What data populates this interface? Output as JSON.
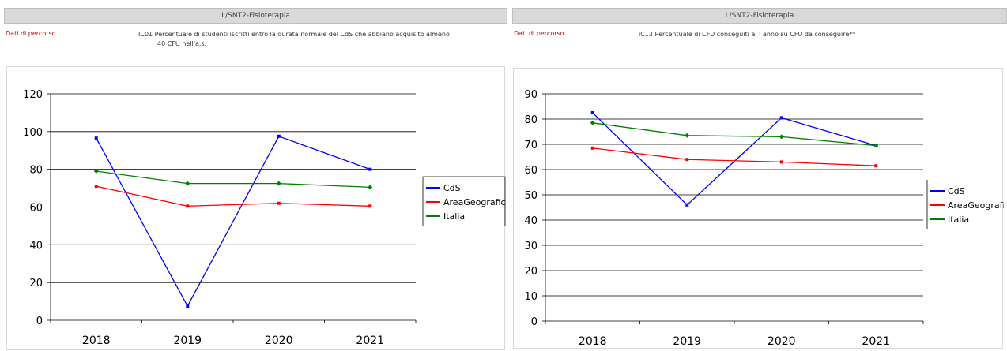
{
  "left": {
    "header": "L/SNT2-Fisioterapia",
    "path_label": "Dati di percorso",
    "indicator_line1": "IC01 Percentuale di studenti iscritti entro la durata normale del CdS che abbiano acquisito almeno",
    "indicator_line2": "40 CFU nell'a.s."
  },
  "right": {
    "header": "L/SNT2-Fisioterapia",
    "path_label": "Dati di percorso",
    "indicator_line1": "iC13 Percentuale di CFU conseguiti al I anno su CFU da conseguire**"
  },
  "colors": {
    "CdS": "#0000ff",
    "AreaGeografica": "#ff0000",
    "Italia": "#008000"
  },
  "chart_data": [
    {
      "type": "line",
      "categories": [
        "2018",
        "2019",
        "2020",
        "2021"
      ],
      "ylim": [
        0,
        120
      ],
      "yticks": [
        0,
        20,
        40,
        60,
        80,
        100,
        120
      ],
      "series": [
        {
          "name": "CdS",
          "values": [
            96.5,
            7.5,
            97.5,
            80.0
          ]
        },
        {
          "name": "AreaGeografica",
          "values": [
            71.0,
            60.5,
            62.0,
            60.5
          ]
        },
        {
          "name": "Italia",
          "values": [
            79.0,
            72.5,
            72.5,
            70.5
          ]
        }
      ],
      "legend_position": "right",
      "grid": true
    },
    {
      "type": "line",
      "categories": [
        "2018",
        "2019",
        "2020",
        "2021"
      ],
      "ylim": [
        0,
        90
      ],
      "yticks": [
        0,
        10,
        20,
        30,
        40,
        50,
        60,
        70,
        80,
        90
      ],
      "series": [
        {
          "name": "CdS",
          "values": [
            82.5,
            46.0,
            80.5,
            69.5
          ]
        },
        {
          "name": "AreaGeografica",
          "values": [
            68.5,
            64.0,
            63.0,
            61.5
          ]
        },
        {
          "name": "Italia",
          "values": [
            78.5,
            73.5,
            73.0,
            69.5
          ]
        }
      ],
      "legend_position": "right",
      "grid": true
    }
  ]
}
